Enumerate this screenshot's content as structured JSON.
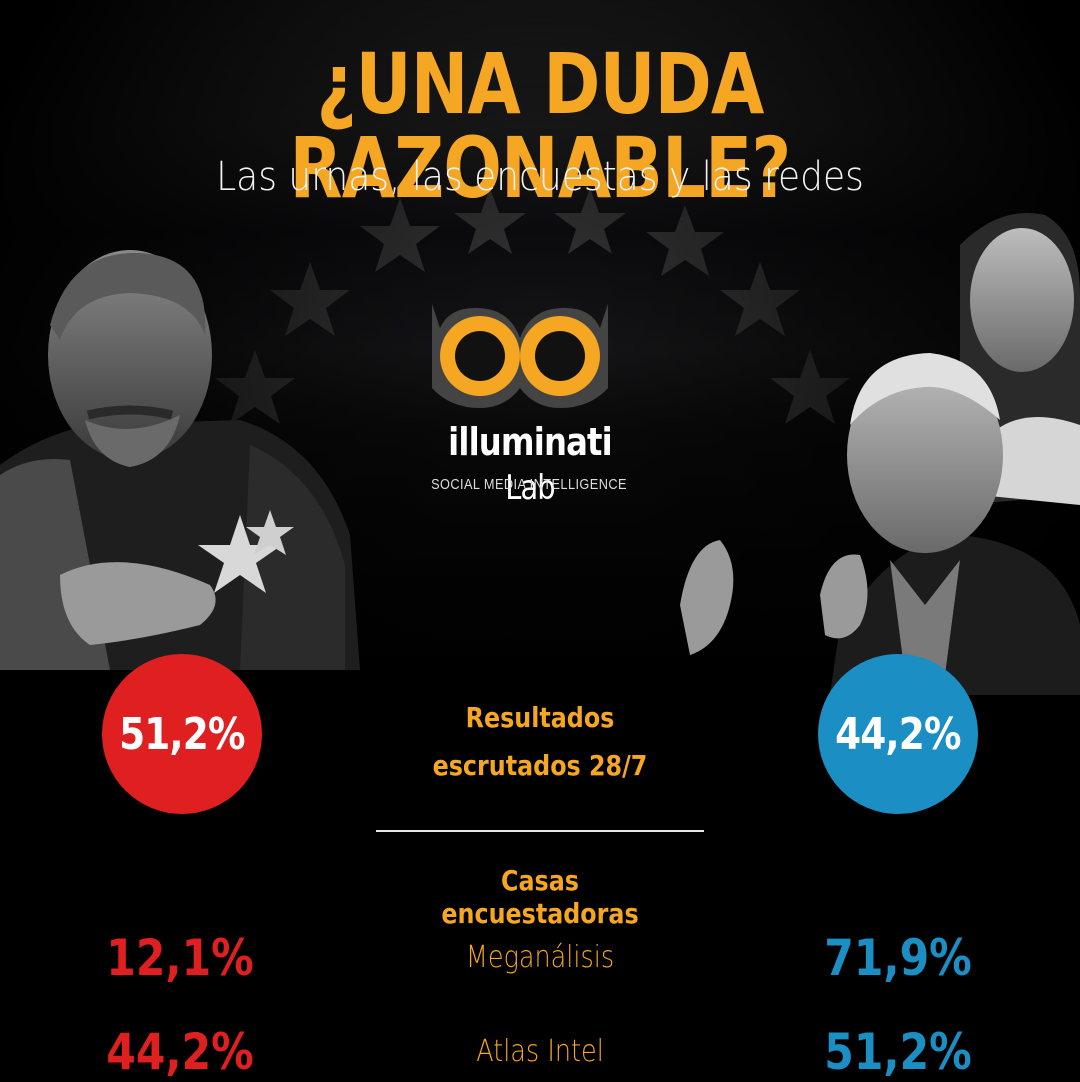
{
  "header": {
    "title": "¿UNA DUDA RAZONABLE?",
    "subtitle": "Las urnas, las encuestas y las redes"
  },
  "logo": {
    "brand": "illuminati",
    "brand_suffix": "Lab",
    "tagline": "SOCIAL MEDIA INTELLIGENCE"
  },
  "results": {
    "left_value": "51,2%",
    "right_value": "44,2%",
    "label_line1": "Resultados",
    "label_line2": "escrutados 28/7"
  },
  "polls": {
    "title": "Casas encuestadoras",
    "rows": [
      {
        "name": "Meganálisis",
        "left": "12,1%",
        "right": "71,9%"
      },
      {
        "name": "Atlas Intel",
        "left": "44,2%",
        "right": "51,2%"
      }
    ]
  },
  "colors": {
    "accent": "#f5a623",
    "red": "#e02020",
    "blue": "#1b8ec4"
  }
}
